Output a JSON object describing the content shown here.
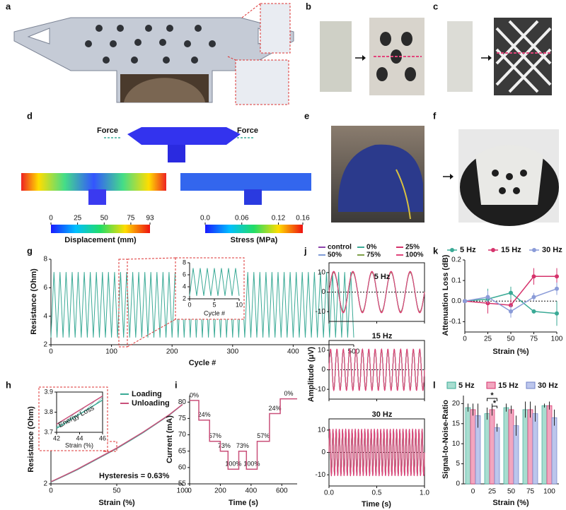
{
  "panel_labels": [
    "a",
    "b",
    "c",
    "d",
    "e",
    "f"
  ],
  "panel_d": {
    "force_left": "Force",
    "force_right": "Force",
    "colorbars": [
      {
        "label": "Displacement (mm)",
        "range": [
          0,
          93
        ],
        "ticks": [
          0,
          25,
          50,
          75,
          93
        ]
      },
      {
        "label": "Stress (MPa)",
        "range": [
          0,
          0.16
        ],
        "ticks": [
          {
            "value": 0,
            "label": "0.0"
          },
          0.06,
          0.12,
          0.16
        ]
      }
    ]
  },
  "chart_data": [
    {
      "type": "line",
      "panel": "g",
      "xlabel": "Cycle #",
      "ylabel": "Resistance (Ohm)",
      "color": "#3aaa96",
      "xlim": [
        0,
        500
      ],
      "xticks": [
        0,
        100,
        200,
        300,
        400,
        500
      ],
      "ylim": [
        2,
        8
      ],
      "yticks": [
        2,
        4,
        6,
        8
      ],
      "x": [
        0,
        5,
        10,
        15,
        20,
        25,
        30,
        35,
        40,
        45,
        50,
        55,
        60,
        65,
        70,
        75,
        80,
        85,
        90,
        95,
        100,
        105,
        110,
        115,
        120,
        125,
        130,
        135,
        140,
        145,
        150,
        155,
        160,
        165,
        170,
        175,
        180,
        185,
        190,
        195,
        200,
        205,
        210,
        215,
        220,
        225,
        230,
        235,
        240,
        245,
        250,
        255,
        260,
        265,
        270,
        275,
        280,
        285,
        290,
        295,
        300,
        305,
        310,
        315,
        320,
        325,
        330,
        335,
        340,
        345,
        350,
        355,
        360,
        365,
        370,
        375,
        380,
        385,
        390,
        395,
        400,
        405,
        410,
        415,
        420,
        425,
        430,
        435,
        440,
        445,
        450,
        455,
        460,
        465,
        470,
        475,
        480,
        485,
        490,
        495,
        500
      ],
      "values": [
        2.5,
        7.1,
        2.5,
        7.1,
        2.5,
        7.1,
        2.5,
        7.1,
        2.5,
        7.1,
        2.5,
        7.1,
        2.5,
        7.1,
        2.5,
        7.1,
        2.5,
        7.1,
        2.5,
        7.1,
        2.5,
        7.1,
        2.5,
        7.1,
        2.5,
        7.1,
        2.5,
        7.1,
        2.5,
        7.1,
        2.5,
        7.1,
        2.5,
        7.1,
        2.5,
        7.1,
        2.5,
        7.1,
        2.5,
        7.1,
        2.5,
        7.1,
        2.5,
        7.1,
        2.5,
        7.1,
        2.5,
        7.1,
        2.5,
        7.1,
        2.5,
        7.1,
        2.5,
        7.1,
        2.5,
        7.1,
        2.5,
        7.1,
        2.5,
        7.1,
        2.5,
        7.1,
        2.5,
        7.1,
        2.5,
        7.1,
        2.5,
        7.1,
        2.5,
        7.1,
        2.5,
        7.1,
        2.5,
        7.1,
        2.5,
        7.1,
        2.5,
        7.1,
        2.5,
        7.1,
        2.5,
        7.1,
        2.5,
        7.1,
        2.5,
        7.1,
        2.5,
        7.1,
        2.5,
        7.1,
        2.5,
        7.1,
        2.5,
        7.1,
        2.5,
        7.1,
        2.5,
        7.1,
        2.5,
        7.1,
        2.5
      ],
      "inset": {
        "xlabel": "Cycle #",
        "xlim": [
          0,
          10
        ],
        "xticks": [
          0,
          5,
          10
        ],
        "ylim": [
          2,
          8
        ],
        "yticks": [
          2,
          4,
          6,
          8
        ],
        "x": [
          0,
          0.71,
          1.43,
          2.14,
          2.86,
          3.57,
          4.29,
          5,
          5.71,
          6.43,
          7.14,
          7.86,
          8.57,
          9.29,
          10
        ],
        "values": [
          2.5,
          7.1,
          2.5,
          7.1,
          2.5,
          7.1,
          2.5,
          7.1,
          2.5,
          7.1,
          2.5,
          7.1,
          2.5,
          7.1,
          2.5
        ]
      }
    },
    {
      "type": "line",
      "panel": "h",
      "xlabel": "Strain (%)",
      "ylabel": "Resistance (Ohm)",
      "xlim": [
        0,
        100
      ],
      "xticks": [
        0,
        50,
        100
      ],
      "ylim": [
        2,
        7
      ],
      "yticks": [
        2,
        4,
        6
      ],
      "x": [
        0,
        10,
        20,
        30,
        40,
        50,
        60,
        70,
        80,
        90,
        100
      ],
      "series": [
        {
          "name": "Loading",
          "color": "#3aaa96",
          "values": [
            2.1,
            2.45,
            2.8,
            3.2,
            3.6,
            4.0,
            4.45,
            4.9,
            5.4,
            5.9,
            6.5
          ]
        },
        {
          "name": "Unloading",
          "color": "#c9507a",
          "values": [
            2.12,
            2.47,
            2.83,
            3.23,
            3.63,
            4.03,
            4.48,
            4.93,
            5.42,
            5.92,
            6.5
          ]
        }
      ],
      "annotation": "Hysteresis = 0.63%",
      "inset": {
        "xlabel": "Strain (%)",
        "annotation": "Energy Loss",
        "xlim": [
          42,
          46
        ],
        "xticks": [
          42,
          44,
          46
        ],
        "ylim": [
          3.7,
          3.9
        ],
        "yticks": [
          3.7,
          3.8,
          3.9
        ],
        "x": [
          42,
          46
        ],
        "series": [
          {
            "values": [
              3.72,
              3.86
            ]
          },
          {
            "values": [
              3.74,
              3.88
            ]
          }
        ]
      }
    },
    {
      "type": "step",
      "panel": "i",
      "xlabel": "Time (s)",
      "ylabel": "Current (mA)",
      "color": "#c9507a",
      "xlim": [
        0,
        700
      ],
      "xticks": [
        0,
        200,
        400,
        600
      ],
      "ylim": [
        55,
        82
      ],
      "yticks": [
        55,
        60,
        65,
        70,
        75,
        80
      ],
      "x": [
        0,
        60,
        130,
        200,
        250,
        320,
        370,
        440,
        520,
        590
      ],
      "values": [
        80.5,
        74.5,
        68,
        65,
        59.5,
        65,
        59.5,
        68,
        76.5,
        81
      ],
      "annotations": [
        "0%",
        "24%",
        "57%",
        "73%",
        "100%",
        "73%",
        "100%",
        "57%",
        "24%",
        "0%"
      ]
    },
    {
      "type": "sine",
      "panel": "j",
      "xlabel": "Time (s)",
      "ylabel": "Amplitude (μV)",
      "xlim": [
        0,
        1
      ],
      "xticks": [
        {
          "value": 0,
          "label": "0.0"
        },
        0.5,
        {
          "value": 1,
          "label": "1.0"
        }
      ],
      "ylim": [
        -15,
        15
      ],
      "yticks": [
        -10,
        0,
        10
      ],
      "series": [
        {
          "name": "control",
          "color": "#8e44ad",
          "amplitude": 10
        },
        {
          "name": "0%",
          "color": "#3aaa96",
          "amplitude": 10
        },
        {
          "name": "25%",
          "color": "#d6336c",
          "amplitude": 10.6
        },
        {
          "name": "50%",
          "color": "#7f9bd6",
          "amplitude": 10
        },
        {
          "name": "75%",
          "color": "#7fa14a",
          "amplitude": 10
        },
        {
          "name": "100%",
          "color": "#e0457b",
          "amplitude": 10.3
        }
      ],
      "subplots": [
        {
          "title": "5 Hz",
          "frequency": 5
        },
        {
          "title": "15 Hz",
          "frequency": 15
        },
        {
          "title": "30 Hz",
          "frequency": 30
        }
      ]
    },
    {
      "type": "errorline",
      "panel": "k",
      "xlabel": "Strain (%)",
      "ylabel": "Attenuation Loss (dB)",
      "xlim": [
        0,
        100
      ],
      "xticks": [
        0,
        25,
        50,
        75,
        100
      ],
      "ylim": [
        -0.15,
        0.2
      ],
      "yticks": [
        -0.1,
        {
          "value": 0,
          "label": "0.0"
        },
        0.1,
        0.2
      ],
      "x": [
        0,
        25,
        50,
        75,
        100
      ],
      "series": [
        {
          "name": "5 Hz",
          "color": "#3aaa96",
          "values": [
            0,
            0.01,
            0.04,
            -0.05,
            -0.06
          ],
          "errors": [
            0,
            0.05,
            0.03,
            0.01,
            0.06
          ]
        },
        {
          "name": "15 Hz",
          "color": "#d6336c",
          "values": [
            0,
            -0.01,
            -0.02,
            0.12,
            0.12
          ],
          "errors": [
            0,
            0.05,
            0.03,
            0.04,
            0.04
          ]
        },
        {
          "name": "30 Hz",
          "color": "#8a9bd8",
          "values": [
            0,
            0.02,
            -0.05,
            0.02,
            0.06
          ],
          "errors": [
            0,
            0.03,
            0.03,
            0.02,
            0.03
          ]
        }
      ]
    },
    {
      "type": "groupedbar",
      "panel": "l",
      "xlabel": "Strain (%)",
      "ylabel": "Signal-to-Noise-Ratio",
      "categories": [
        "0",
        "25",
        "50",
        "75",
        "100"
      ],
      "ylim": [
        0,
        22
      ],
      "yticks": [
        0,
        5,
        10,
        15,
        20
      ],
      "annotations": [
        "*",
        "*"
      ],
      "series": [
        {
          "name": "5 Hz",
          "color": "#a8ddd0",
          "edge": "#3aaa96",
          "values": [
            19,
            17.5,
            19,
            18.5,
            19.5
          ],
          "errors": [
            1,
            1.5,
            1,
            2,
            0.5
          ]
        },
        {
          "name": "15 Hz",
          "color": "#f2a6bf",
          "edge": "#d6336c",
          "values": [
            18.5,
            18.5,
            18.5,
            18.5,
            19.5
          ],
          "errors": [
            1.5,
            1.5,
            1,
            2,
            1
          ]
        },
        {
          "name": "30 Hz",
          "color": "#bcc6ec",
          "edge": "#6f82c8",
          "values": [
            17,
            14,
            14.5,
            17.5,
            16.5
          ],
          "errors": [
            3,
            1,
            2.5,
            2,
            2
          ]
        }
      ]
    }
  ]
}
